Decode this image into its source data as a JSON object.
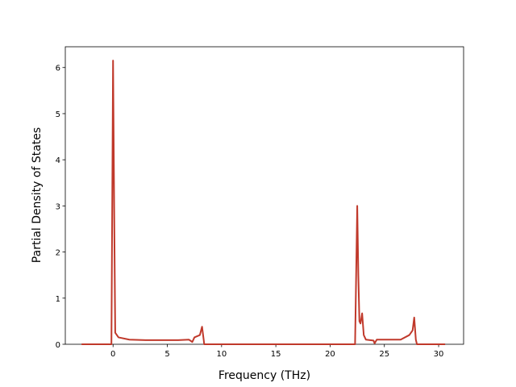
{
  "chart_data": {
    "type": "line",
    "x_label": "Frequency (THz)",
    "y_label": "Partial Density of States",
    "xlim": [
      -4.4,
      32.3
    ],
    "ylim": [
      0,
      6.45
    ],
    "xticks": [
      0,
      5,
      10,
      15,
      20,
      25,
      30
    ],
    "yticks": [
      0,
      1,
      2,
      3,
      4,
      5,
      6
    ],
    "grid": false,
    "series": [
      {
        "color": "#c0392b",
        "x": [
          -2.9,
          -0.15,
          0,
          0.1,
          0.2,
          0.5,
          1.5,
          3,
          6,
          7,
          7.3,
          7.5,
          8,
          8.2,
          8.35,
          8.4,
          22.3,
          22.4,
          22.5,
          22.6,
          22.7,
          22.8,
          22.95,
          23.1,
          23.3,
          24,
          24.1,
          24.3,
          26.5,
          27.3,
          27.6,
          27.75,
          27.9,
          28,
          30.6
        ],
        "values": [
          0,
          0,
          6.15,
          3,
          0.25,
          0.15,
          0.1,
          0.09,
          0.09,
          0.1,
          0.05,
          0.15,
          0.2,
          0.38,
          0.1,
          0,
          0,
          1.5,
          3.0,
          1.5,
          0.5,
          0.45,
          0.67,
          0.2,
          0.1,
          0.08,
          0.02,
          0.1,
          0.1,
          0.2,
          0.3,
          0.58,
          0.1,
          0,
          0
        ]
      }
    ]
  }
}
